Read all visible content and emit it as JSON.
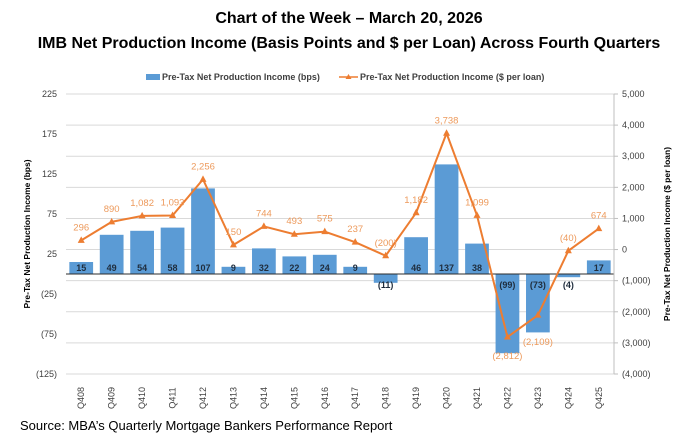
{
  "header": {
    "title": "Chart of the Week – March 20, 2026",
    "subtitle": "IMB Net Production Income (Basis Points and $ per Loan) Across Fourth Quarters"
  },
  "footer": {
    "source": "Source: MBA’s Quarterly Mortgage Bankers Performance Report"
  },
  "colors": {
    "bar": "#5b9bd5",
    "line": "#ed7d31",
    "line_label": "#ed9a5c",
    "grid": "#d9d9d9"
  },
  "chart_data": {
    "type": "bar+line",
    "title": "IMB Net Production Income (Basis Points and $ per Loan) Across Fourth Quarters",
    "categories": [
      "Q408",
      "Q409",
      "Q410",
      "Q411",
      "Q412",
      "Q413",
      "Q414",
      "Q415",
      "Q416",
      "Q417",
      "Q418",
      "Q419",
      "Q420",
      "Q421",
      "Q422",
      "Q423",
      "Q424",
      "Q425"
    ],
    "series": [
      {
        "name": "Pre-Tax Net Production Income (bps)",
        "type": "bar",
        "axis": "left",
        "values": [
          15,
          49,
          54,
          58,
          107,
          9,
          32,
          22,
          24,
          9,
          -11,
          46,
          137,
          38,
          -99,
          -73,
          -4,
          17
        ],
        "labels": [
          "15",
          "49",
          "54",
          "58",
          "107",
          "9",
          "32",
          "22",
          "24",
          "9",
          "(11)",
          "46",
          "137",
          "38",
          "(99)",
          "(73)",
          "(4)",
          "17"
        ]
      },
      {
        "name": "Pre-Tax Net Production Income ($ per loan)",
        "type": "line",
        "axis": "right",
        "values": [
          296,
          890,
          1082,
          1093,
          2256,
          150,
          744,
          493,
          575,
          237,
          -200,
          1182,
          3738,
          1099,
          -2812,
          -2109,
          -40,
          674
        ],
        "labels": [
          "296",
          "890",
          "1,082",
          "1,093",
          "2,256",
          "150",
          "744",
          "493",
          "575",
          "237",
          "(200)",
          "1,182",
          "3,738",
          "1,099",
          "(2,812)",
          "(2,109)",
          "(40)",
          "674"
        ]
      }
    ],
    "ylabel": "Pre-Tax Net Production Income (bps)",
    "ylabel_right": "Pre-Tax Net Production Income ($ per loan)",
    "ylim": [
      -125,
      225
    ],
    "ylim_right": [
      -4000,
      5000
    ],
    "yticks": [
      "225",
      "175",
      "125",
      "75",
      "25",
      "(25)",
      "(75)",
      "(125)"
    ],
    "yticks_values": [
      225,
      175,
      125,
      75,
      25,
      -25,
      -75,
      -125
    ],
    "yticks_right": [
      "5,000",
      "4,000",
      "3,000",
      "2,000",
      "1,000",
      "0",
      "(1,000)",
      "(2,000)",
      "(3,000)",
      "(4,000)"
    ],
    "yticks_right_values": [
      5000,
      4000,
      3000,
      2000,
      1000,
      0,
      -1000,
      -2000,
      -3000,
      -4000
    ],
    "grid": true,
    "legend_position": "top-center"
  }
}
